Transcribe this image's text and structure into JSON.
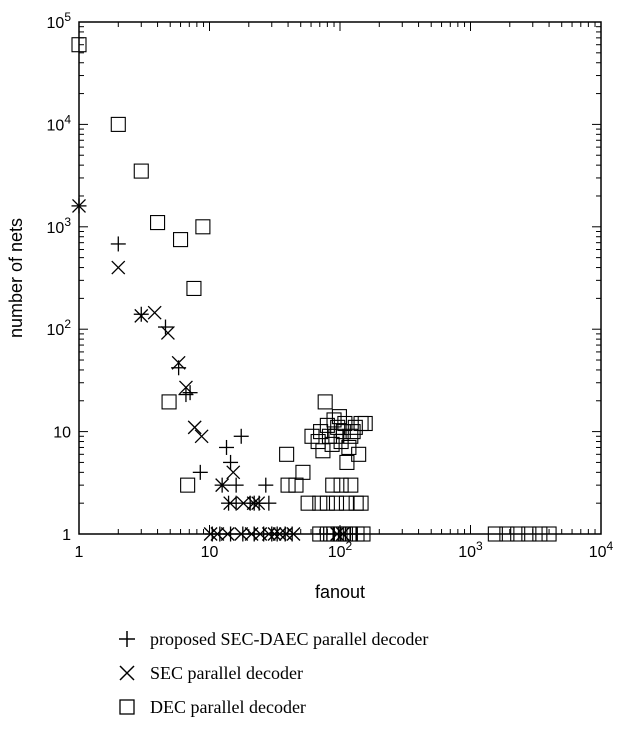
{
  "chart_data": {
    "type": "scatter",
    "xlabel": "fanout",
    "ylabel": "number of nets",
    "xscale": "log",
    "yscale": "log",
    "xlim": [
      1,
      10000
    ],
    "ylim": [
      1,
      100000
    ],
    "grid": false,
    "legend_position": "below",
    "x_ticks": [
      {
        "value": 1,
        "label": "1",
        "sup": ""
      },
      {
        "value": 10,
        "label": "10",
        "sup": ""
      },
      {
        "value": 100,
        "label": "10",
        "sup": "2"
      },
      {
        "value": 1000,
        "label": "10",
        "sup": "3"
      },
      {
        "value": 10000,
        "label": "10",
        "sup": "4"
      }
    ],
    "y_ticks": [
      {
        "value": 1,
        "label": "1",
        "sup": ""
      },
      {
        "value": 10,
        "label": "10",
        "sup": ""
      },
      {
        "value": 100,
        "label": "10",
        "sup": "2"
      },
      {
        "value": 1000,
        "label": "10",
        "sup": "3"
      },
      {
        "value": 10000,
        "label": "10",
        "sup": "4"
      },
      {
        "value": 100000,
        "label": "10",
        "sup": "5"
      }
    ],
    "series": [
      {
        "name": "proposed SEC-DAEC parallel decoder",
        "marker": "plus",
        "points": [
          [
            1,
            1600
          ],
          [
            2,
            680
          ],
          [
            3,
            140
          ],
          [
            4.6,
            105
          ],
          [
            5.8,
            42
          ],
          [
            6.6,
            23
          ],
          [
            7.1,
            24
          ],
          [
            8.5,
            4
          ],
          [
            13.5,
            7
          ],
          [
            14.5,
            5
          ],
          [
            16,
            3
          ],
          [
            17.5,
            9
          ],
          [
            12.5,
            3
          ],
          [
            14,
            2
          ],
          [
            16,
            2
          ],
          [
            20.5,
            2
          ],
          [
            22,
            2
          ],
          [
            24,
            2
          ],
          [
            27,
            3
          ],
          [
            28.5,
            2
          ],
          [
            10.5,
            1
          ],
          [
            12,
            1
          ],
          [
            14.5,
            1
          ],
          [
            18,
            1
          ],
          [
            22,
            1
          ],
          [
            26,
            1
          ],
          [
            30,
            1
          ],
          [
            33,
            1
          ],
          [
            38,
            1
          ],
          [
            43,
            1
          ],
          [
            75,
            1
          ],
          [
            90,
            1
          ],
          [
            100,
            1
          ],
          [
            110,
            1
          ],
          [
            120,
            1
          ],
          [
            135,
            1
          ]
        ]
      },
      {
        "name": "SEC parallel decoder",
        "marker": "cross",
        "points": [
          [
            1,
            1600
          ],
          [
            2,
            400
          ],
          [
            3,
            135
          ],
          [
            3.8,
            145
          ],
          [
            4.8,
            92
          ],
          [
            5.8,
            47
          ],
          [
            6.6,
            27
          ],
          [
            7.7,
            11
          ],
          [
            8.7,
            9
          ],
          [
            12.5,
            3
          ],
          [
            15.2,
            4
          ],
          [
            14.4,
            2
          ],
          [
            18.2,
            2
          ],
          [
            21.8,
            2
          ],
          [
            23.6,
            2
          ],
          [
            10.2,
            1
          ],
          [
            11.5,
            1
          ],
          [
            13.8,
            1
          ],
          [
            17.5,
            1
          ],
          [
            21,
            1
          ],
          [
            24.5,
            1
          ],
          [
            28.5,
            1
          ],
          [
            31.5,
            1
          ],
          [
            34.5,
            1
          ],
          [
            38.5,
            1
          ],
          [
            44,
            1
          ],
          [
            95,
            1
          ],
          [
            105,
            1
          ]
        ]
      },
      {
        "name": "DEC parallel decoder",
        "marker": "square",
        "points": [
          [
            1,
            60000
          ],
          [
            2,
            10000
          ],
          [
            3,
            3500
          ],
          [
            4,
            1100
          ],
          [
            6,
            750
          ],
          [
            8.9,
            1000
          ],
          [
            7.6,
            250
          ],
          [
            4.9,
            19.5
          ],
          [
            6.8,
            3
          ],
          [
            39,
            6
          ],
          [
            40,
            3
          ],
          [
            46,
            3
          ],
          [
            52,
            4
          ],
          [
            57,
            2
          ],
          [
            61,
            9
          ],
          [
            68,
            8
          ],
          [
            71,
            10
          ],
          [
            74,
            6.5
          ],
          [
            77,
            19.5
          ],
          [
            80,
            11.5
          ],
          [
            83,
            9
          ],
          [
            87,
            7.5
          ],
          [
            90,
            13
          ],
          [
            93,
            9
          ],
          [
            96,
            11
          ],
          [
            99,
            14
          ],
          [
            102,
            8
          ],
          [
            106,
            10
          ],
          [
            109,
            12
          ],
          [
            113,
            5
          ],
          [
            117,
            7
          ],
          [
            121,
            9
          ],
          [
            126,
            10
          ],
          [
            131,
            11
          ],
          [
            139,
            6
          ],
          [
            145,
            12
          ],
          [
            156,
            12
          ],
          [
            70,
            2
          ],
          [
            80,
            2
          ],
          [
            88,
            3
          ],
          [
            94,
            2
          ],
          [
            102,
            3
          ],
          [
            112,
            2
          ],
          [
            121,
            3
          ],
          [
            133,
            2
          ],
          [
            145,
            2
          ],
          [
            70,
            1
          ],
          [
            80,
            1
          ],
          [
            90,
            1
          ],
          [
            100,
            1
          ],
          [
            110,
            1
          ],
          [
            120,
            1
          ],
          [
            135,
            1
          ],
          [
            150,
            1
          ],
          [
            1550,
            1
          ],
          [
            1900,
            1
          ],
          [
            2300,
            1
          ],
          [
            2800,
            1
          ],
          [
            3400,
            1
          ],
          [
            4000,
            1
          ]
        ]
      }
    ]
  }
}
